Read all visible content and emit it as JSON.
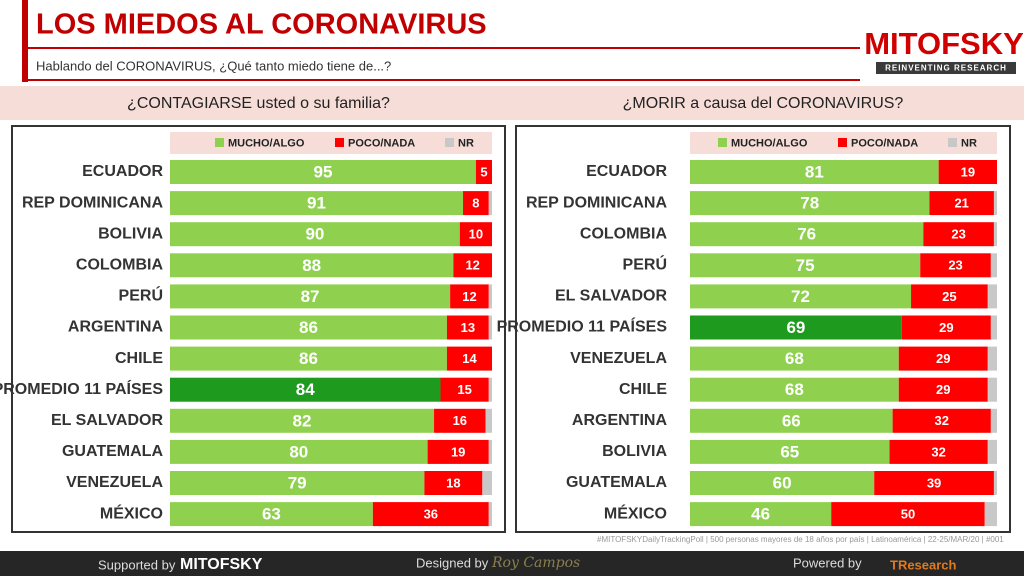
{
  "header": {
    "title": "LOS MIEDOS AL CORONAVIRUS",
    "subtitle": "Hablando del CORONAVIRUS, ¿Qué tanto miedo tiene de...?",
    "logo": "MITOFSKY",
    "logo_tagline": "REINVENTING RESEARCH"
  },
  "chart_data": [
    {
      "type": "stacked-bar",
      "title": "¿CONTAGIARSE usted o su familia?",
      "xlim": [
        0,
        100
      ],
      "categories": [
        "ECUADOR",
        "REP DOMINICANA",
        "BOLIVIA",
        "COLOMBIA",
        "PERÚ",
        "ARGENTINA",
        "CHILE",
        "PROMEDIO 11 PAÍSES",
        "EL SALVADOR",
        "GUATEMALA",
        "VENEZUELA",
        "MÉXICO"
      ],
      "series": [
        {
          "name": "MUCHO/ALGO",
          "color": "#8fd14f",
          "colors": [
            "#8fd14f",
            "#8fd14f",
            "#8fd14f",
            "#8fd14f",
            "#8fd14f",
            "#8fd14f",
            "#8fd14f",
            "#1e9a1e",
            "#8fd14f",
            "#8fd14f",
            "#8fd14f",
            "#8fd14f"
          ],
          "values": [
            95,
            91,
            90,
            88,
            87,
            86,
            86,
            84,
            82,
            80,
            79,
            63
          ]
        },
        {
          "name": "POCO/NADA",
          "color": "#ff0000",
          "values": [
            5,
            8,
            10,
            12,
            12,
            13,
            14,
            15,
            16,
            19,
            18,
            36
          ]
        },
        {
          "name": "NR",
          "color": "#c8c8c8",
          "values": [
            0,
            1,
            0,
            0,
            1,
            1,
            0,
            1,
            2,
            1,
            3,
            1
          ]
        }
      ]
    },
    {
      "type": "stacked-bar",
      "title": "¿MORIR a causa del CORONAVIRUS?",
      "xlim": [
        0,
        100
      ],
      "categories": [
        "ECUADOR",
        "REP DOMINICANA",
        "COLOMBIA",
        "PERÚ",
        "EL SALVADOR",
        "PROMEDIO 11 PAÍSES",
        "VENEZUELA",
        "CHILE",
        "ARGENTINA",
        "BOLIVIA",
        "GUATEMALA",
        "MÉXICO"
      ],
      "series": [
        {
          "name": "MUCHO/ALGO",
          "color": "#8fd14f",
          "colors": [
            "#8fd14f",
            "#8fd14f",
            "#8fd14f",
            "#8fd14f",
            "#8fd14f",
            "#1e9a1e",
            "#8fd14f",
            "#8fd14f",
            "#8fd14f",
            "#8fd14f",
            "#8fd14f",
            "#8fd14f"
          ],
          "values": [
            81,
            78,
            76,
            75,
            72,
            69,
            68,
            68,
            66,
            65,
            60,
            46
          ]
        },
        {
          "name": "POCO/NADA",
          "color": "#ff0000",
          "values": [
            19,
            21,
            23,
            23,
            25,
            29,
            29,
            29,
            32,
            32,
            39,
            50
          ]
        },
        {
          "name": "NR",
          "color": "#c8c8c8",
          "values": [
            0,
            1,
            1,
            2,
            3,
            2,
            3,
            3,
            2,
            3,
            1,
            4
          ]
        }
      ]
    }
  ],
  "footer": {
    "note": "#MITOFSKYDailyTrackingPoll | 500 personas mayores de 18 años por país | Latinoamérica | 22-25/MAR/20 | #001",
    "supported_by": "Supported by",
    "supported_logo": "MITOFSKY",
    "designed_by": "Designed by",
    "designed_signature": "Roy Campos",
    "powered_by": "Powered by",
    "powered_logo": "TResearch"
  }
}
